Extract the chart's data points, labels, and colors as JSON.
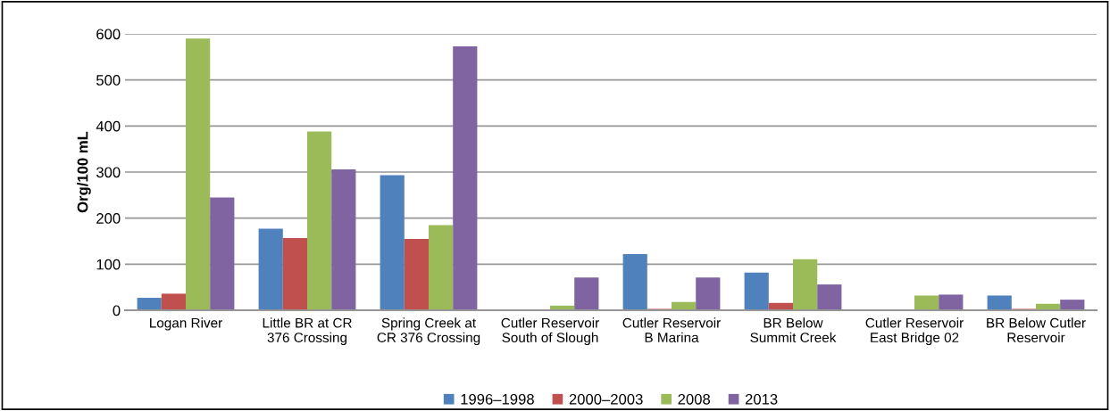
{
  "chart_data": {
    "type": "bar",
    "categories": [
      "Logan River",
      "Little BR at CR\n376 Crossing",
      "Spring Creek at\nCR 376 Crossing",
      "Cutler Reservoir\nSouth of Slough",
      "Cutler Reservoir\nB Marina",
      "BR Below\nSummit Creek",
      "Cutler Reservoir\nEast Bridge 02",
      "BR Below Cutler\nReservoir"
    ],
    "series": [
      {
        "name": "1996–1998",
        "color": "#4f81bd",
        "values": [
          27,
          177,
          293,
          null,
          122,
          82,
          null,
          32
        ]
      },
      {
        "name": "2000–2003",
        "color": "#c0504d",
        "values": [
          36,
          157,
          155,
          null,
          3,
          16,
          null,
          3
        ]
      },
      {
        "name": "2008",
        "color": "#9bbb59",
        "values": [
          590,
          388,
          185,
          10,
          18,
          111,
          32,
          14
        ]
      },
      {
        "name": "2013",
        "color": "#8064a2",
        "values": [
          245,
          306,
          573,
          71,
          71,
          56,
          34,
          23
        ]
      }
    ],
    "ylabel": "Org/100 mL",
    "ylim": [
      0,
      600
    ],
    "yticks": [
      0,
      100,
      200,
      300,
      400,
      500,
      600
    ],
    "grid": "y",
    "legend": "bottom"
  }
}
